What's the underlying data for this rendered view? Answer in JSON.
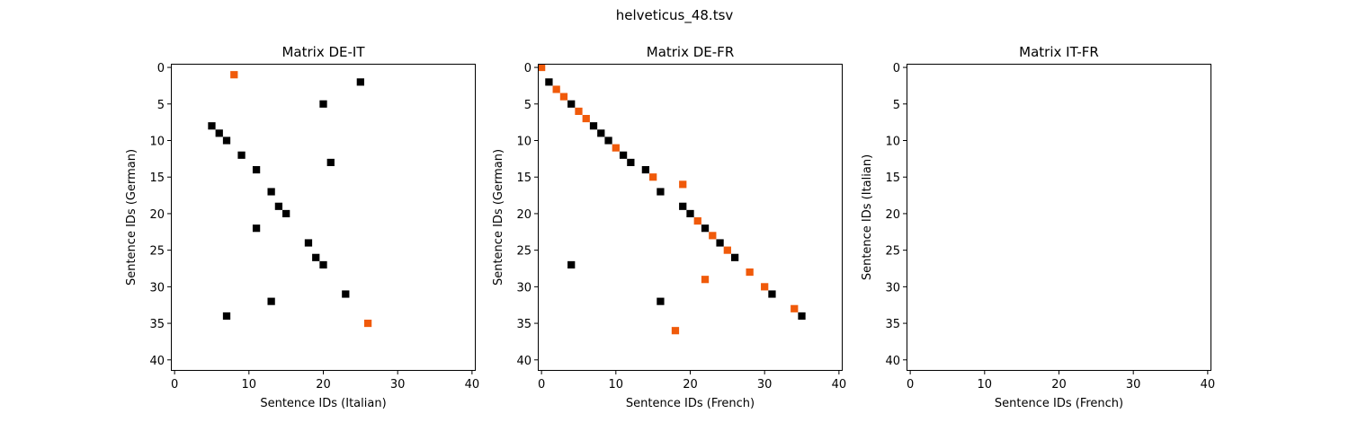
{
  "figure": {
    "title": "helveticus_48.tsv"
  },
  "colors": {
    "black": "#000000",
    "orange": "#f05a0a"
  },
  "chart_data": [
    {
      "type": "heatmap",
      "title": "Matrix DE-IT",
      "xlabel": "Sentence IDs (Italian)",
      "ylabel": "Sentence IDs (German)",
      "xlim": [
        -0.5,
        40.5
      ],
      "ylim": [
        41.5,
        -0.5
      ],
      "xticks": [
        0,
        10,
        20,
        30,
        40
      ],
      "yticks": [
        0,
        5,
        10,
        15,
        20,
        25,
        30,
        35,
        40
      ],
      "grid": false,
      "series": [
        {
          "color": "black",
          "points": [
            [
              25,
              2
            ],
            [
              20,
              5
            ],
            [
              5,
              8
            ],
            [
              6,
              9
            ],
            [
              7,
              10
            ],
            [
              9,
              12
            ],
            [
              21,
              13
            ],
            [
              11,
              14
            ],
            [
              13,
              17
            ],
            [
              14,
              19
            ],
            [
              15,
              20
            ],
            [
              11,
              22
            ],
            [
              18,
              24
            ],
            [
              19,
              26
            ],
            [
              20,
              27
            ],
            [
              23,
              31
            ],
            [
              13,
              32
            ],
            [
              7,
              34
            ]
          ]
        },
        {
          "color": "orange",
          "points": [
            [
              8,
              1
            ],
            [
              26,
              35
            ]
          ]
        }
      ]
    },
    {
      "type": "heatmap",
      "title": "Matrix DE-FR",
      "xlabel": "Sentence IDs (French)",
      "ylabel": "Sentence IDs (German)",
      "xlim": [
        -0.5,
        40.5
      ],
      "ylim": [
        41.5,
        -0.5
      ],
      "xticks": [
        0,
        10,
        20,
        30,
        40
      ],
      "yticks": [
        0,
        5,
        10,
        15,
        20,
        25,
        30,
        35,
        40
      ],
      "grid": false,
      "series": [
        {
          "color": "black",
          "points": [
            [
              1,
              2
            ],
            [
              4,
              5
            ],
            [
              7,
              8
            ],
            [
              8,
              9
            ],
            [
              9,
              10
            ],
            [
              11,
              12
            ],
            [
              12,
              13
            ],
            [
              14,
              14
            ],
            [
              16,
              17
            ],
            [
              19,
              19
            ],
            [
              20,
              20
            ],
            [
              22,
              22
            ],
            [
              24,
              24
            ],
            [
              26,
              26
            ],
            [
              4,
              27
            ],
            [
              16,
              32
            ],
            [
              31,
              31
            ],
            [
              35,
              34
            ]
          ]
        },
        {
          "color": "orange",
          "points": [
            [
              0,
              0
            ],
            [
              2,
              3
            ],
            [
              3,
              4
            ],
            [
              5,
              6
            ],
            [
              6,
              7
            ],
            [
              10,
              11
            ],
            [
              15,
              15
            ],
            [
              19,
              16
            ],
            [
              21,
              21
            ],
            [
              23,
              23
            ],
            [
              25,
              25
            ],
            [
              28,
              28
            ],
            [
              22,
              29
            ],
            [
              30,
              30
            ],
            [
              34,
              33
            ],
            [
              18,
              36
            ]
          ]
        }
      ]
    },
    {
      "type": "heatmap",
      "title": "Matrix IT-FR",
      "xlabel": "Sentence IDs (French)",
      "ylabel": "Sentence IDs (Italian)",
      "xlim": [
        -0.5,
        40.5
      ],
      "ylim": [
        41.5,
        -0.5
      ],
      "xticks": [
        0,
        10,
        20,
        30,
        40
      ],
      "yticks": [
        0,
        5,
        10,
        15,
        20,
        25,
        30,
        35,
        40
      ],
      "grid": false,
      "series": []
    }
  ]
}
